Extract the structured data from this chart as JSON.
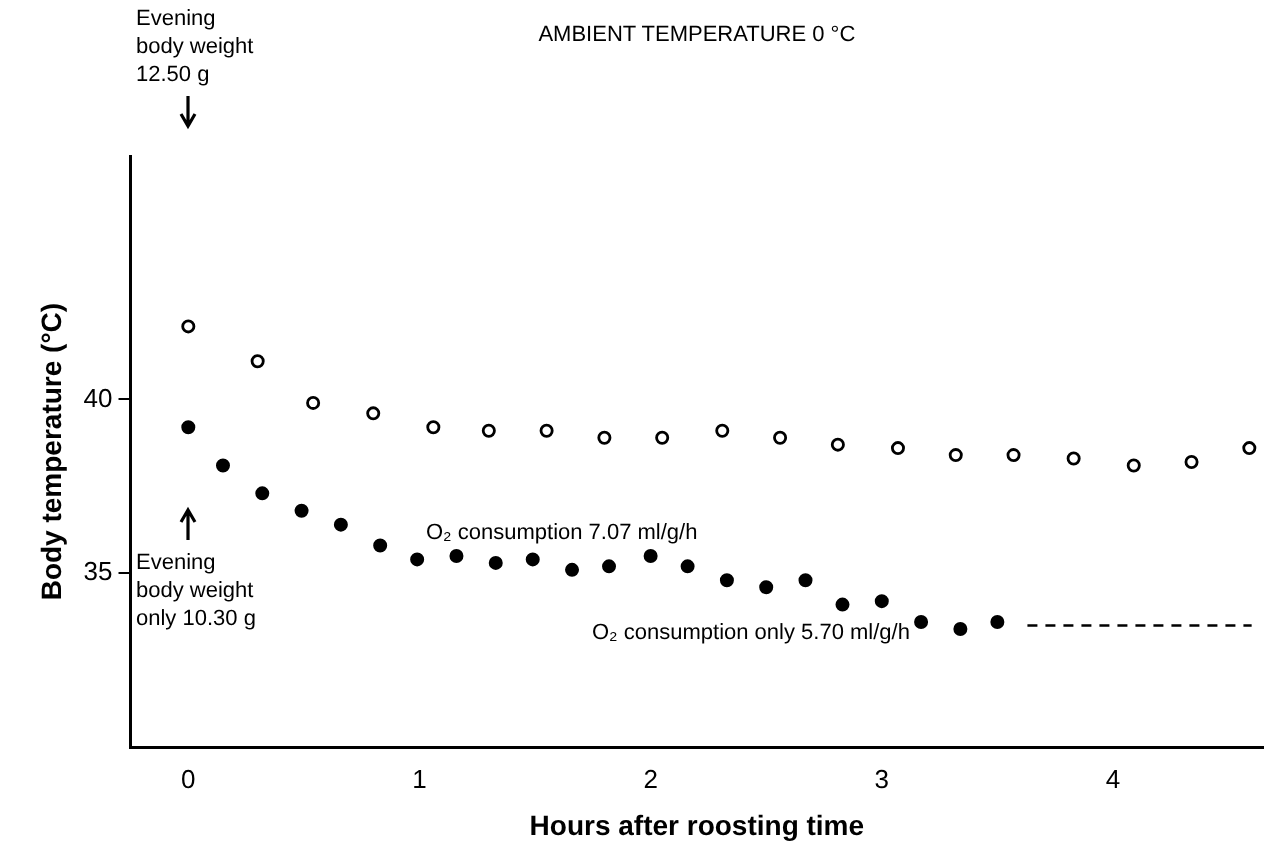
{
  "chart_data": {
    "type": "scatter",
    "title": "AMBIENT TEMPERATURE 0 °C",
    "xlabel": "Hours after roosting time",
    "ylabel": "Body temperature (°C)",
    "xlim": [
      -0.25,
      4.65
    ],
    "xticks": [
      0,
      1,
      2,
      3,
      4
    ],
    "ylim": [
      30,
      47
    ],
    "yticks": [
      35,
      40
    ],
    "grid": false,
    "legend": false,
    "series": [
      {
        "color": "#000000",
        "marker": "circle-open",
        "x": [
          0,
          0.3,
          0.54,
          0.8,
          1.06,
          1.3,
          1.55,
          1.8,
          2.05,
          2.31,
          2.56,
          2.81,
          3.07,
          3.32,
          3.57,
          3.83,
          4.09,
          4.34,
          4.59
        ],
        "values": [
          42.1,
          41.1,
          39.9,
          39.6,
          39.2,
          39.1,
          39.1,
          38.9,
          38.9,
          39.1,
          38.9,
          38.7,
          38.6,
          38.4,
          38.4,
          38.3,
          38.1,
          38.2,
          38.6
        ]
      },
      {
        "color": "#000000",
        "marker": "circle",
        "x": [
          0,
          0.15,
          0.32,
          0.49,
          0.66,
          0.83,
          0.99,
          1.16,
          1.33,
          1.49,
          1.66,
          1.82,
          2.0,
          2.16,
          2.33,
          2.5,
          2.67,
          2.83,
          3.0,
          3.17,
          3.34,
          3.5
        ],
        "values": [
          39.2,
          38.1,
          37.3,
          36.8,
          36.4,
          35.8,
          35.4,
          35.5,
          35.3,
          35.4,
          35.1,
          35.2,
          35.5,
          35.2,
          34.8,
          34.6,
          34.8,
          34.1,
          34.2,
          33.6,
          33.4,
          33.6
        ]
      },
      {
        "type": "line",
        "color": "#000000",
        "line_style": "dashed",
        "marker": "none",
        "x": [
          3.63,
          4.6
        ],
        "values": [
          33.5,
          33.5
        ]
      }
    ],
    "annotations": [
      "Evening body weight 12.50 g",
      "Evening body weight only 10.30 g",
      "O₂ consumption 7.07 ml/g/h",
      "O₂ consumption only 5.70 ml/g/h"
    ]
  }
}
